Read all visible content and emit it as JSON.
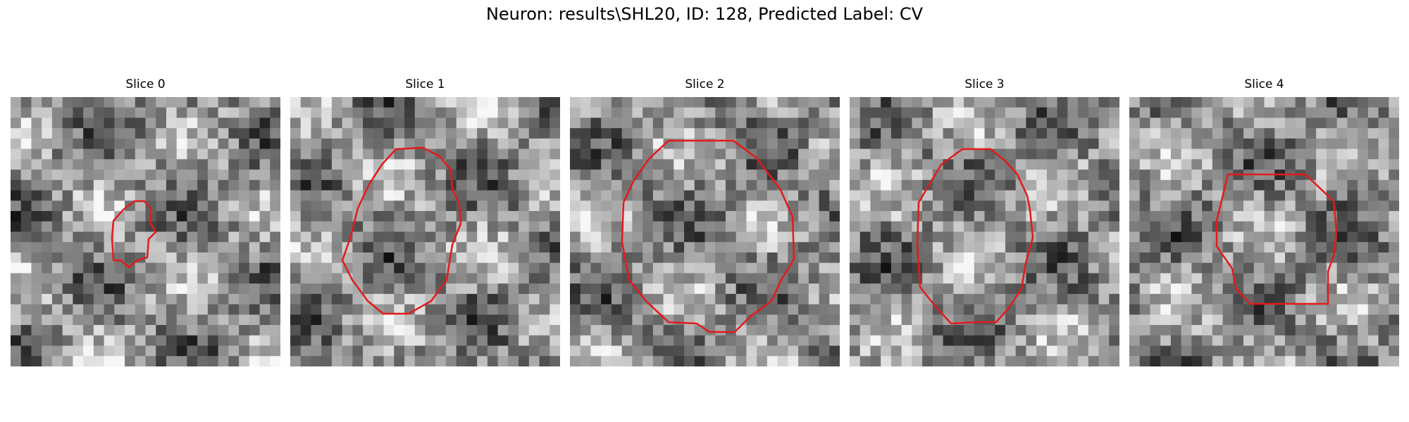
{
  "figure": {
    "title": "Neuron: results\\SHL20, ID: 128, Predicted Label: CV",
    "contour_color": "#e31a1c",
    "colormap": "gray"
  },
  "slices": [
    {
      "title": "Slice 0"
    },
    {
      "title": "Slice 1"
    },
    {
      "title": "Slice 2"
    },
    {
      "title": "Slice 3"
    },
    {
      "title": "Slice 4"
    }
  ]
}
